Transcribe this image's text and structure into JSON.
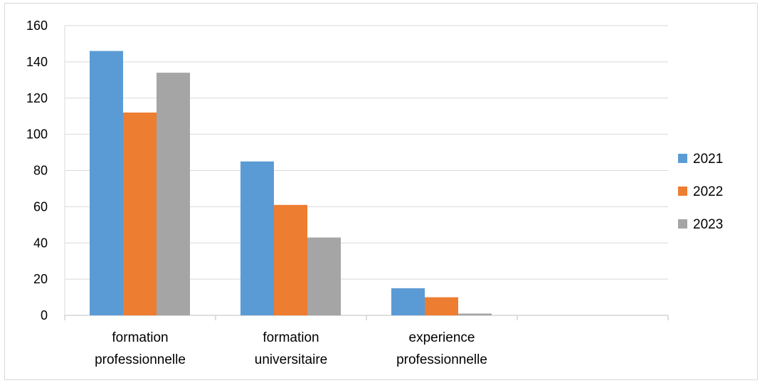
{
  "chart_data": {
    "type": "bar",
    "categories": [
      [
        "formation",
        "professionnelle"
      ],
      [
        "formation",
        "universitaire"
      ],
      [
        "experience",
        "professionnelle"
      ],
      [
        ""
      ]
    ],
    "series": [
      {
        "name": "2021",
        "color": "#5b9bd5",
        "values": [
          146,
          85,
          15,
          null
        ]
      },
      {
        "name": "2022",
        "color": "#ed7d31",
        "values": [
          112,
          61,
          10,
          null
        ]
      },
      {
        "name": "2023",
        "color": "#a5a5a5",
        "values": [
          134,
          43,
          1,
          null
        ]
      }
    ],
    "ylim": [
      0,
      160
    ],
    "yticks": [
      0,
      20,
      40,
      60,
      80,
      100,
      120,
      140,
      160
    ],
    "grid": true,
    "legend_position": "right",
    "gridline_color": "#d9d9d9",
    "axis_color": "#bfbfbf"
  }
}
